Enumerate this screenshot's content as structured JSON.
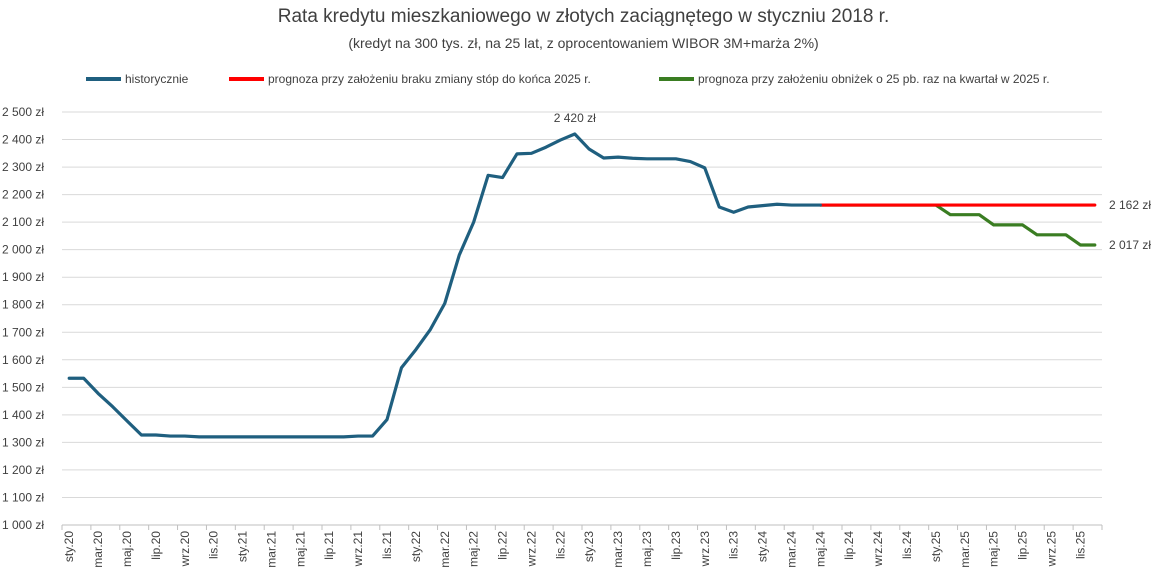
{
  "chart_data": {
    "type": "line",
    "title": "Rata kredytu mieszkaniowego w złotych zaciągnętego w styczniu 2018 r.",
    "subtitle": "(kredyt na 300 tys. zł, na 25 lat, z oprocentowaniem WIBOR 3M+marża 2%)",
    "ylim": [
      1000,
      2500
    ],
    "y_ticks": [
      "1 000 zł",
      "1 100 zł",
      "1 200 zł",
      "1 300 zł",
      "1 400 zł",
      "1 500 zł",
      "1 600 zł",
      "1 700 zł",
      "1 800 zł",
      "1 900 zł",
      "2 000 zł",
      "2 100 zł",
      "2 200 zł",
      "2 300 zł",
      "2 400 zł",
      "2 500 zł"
    ],
    "x_tick_labels": [
      "sty.20",
      "mar.20",
      "maj.20",
      "lip.20",
      "wrz.20",
      "lis.20",
      "sty.21",
      "mar.21",
      "maj.21",
      "lip.21",
      "wrz.21",
      "lis.21",
      "sty.22",
      "mar.22",
      "maj.22",
      "lip.22",
      "wrz.22",
      "lis.22",
      "sty.23",
      "mar.23",
      "maj.23",
      "lip.23",
      "wrz.23",
      "lis.23",
      "sty.24",
      "mar.24",
      "maj.24",
      "lip.24",
      "wrz.24",
      "lis.24",
      "sty.25",
      "mar.25",
      "maj.25",
      "lip.25",
      "wrz.25",
      "lis.25"
    ],
    "x_months": [
      "2020-01",
      "2020-02",
      "2020-03",
      "2020-04",
      "2020-05",
      "2020-06",
      "2020-07",
      "2020-08",
      "2020-09",
      "2020-10",
      "2020-11",
      "2020-12",
      "2021-01",
      "2021-02",
      "2021-03",
      "2021-04",
      "2021-05",
      "2021-06",
      "2021-07",
      "2021-08",
      "2021-09",
      "2021-10",
      "2021-11",
      "2021-12",
      "2022-01",
      "2022-02",
      "2022-03",
      "2022-04",
      "2022-05",
      "2022-06",
      "2022-07",
      "2022-08",
      "2022-09",
      "2022-10",
      "2022-11",
      "2022-12",
      "2023-01",
      "2023-02",
      "2023-03",
      "2023-04",
      "2023-05",
      "2023-06",
      "2023-07",
      "2023-08",
      "2023-09",
      "2023-10",
      "2023-11",
      "2023-12",
      "2024-01",
      "2024-02",
      "2024-03",
      "2024-04",
      "2024-05",
      "2024-06",
      "2024-07",
      "2024-08",
      "2024-09",
      "2024-10",
      "2024-11",
      "2024-12",
      "2025-01",
      "2025-02",
      "2025-03",
      "2025-04",
      "2025-05",
      "2025-06",
      "2025-07",
      "2025-08",
      "2025-09",
      "2025-10",
      "2025-11",
      "2025-12"
    ],
    "series": [
      {
        "name": "historycznie",
        "color": "#1f5f7f",
        "start_month": "2020-01",
        "values": [
          1533,
          1533,
          1478,
          1430,
          1378,
          1327,
          1327,
          1323,
          1323,
          1320,
          1320,
          1320,
          1320,
          1320,
          1320,
          1320,
          1320,
          1320,
          1320,
          1320,
          1323,
          1323,
          1383,
          1571,
          1637,
          1710,
          1805,
          1980,
          2100,
          2270,
          2262,
          2348,
          2350,
          2372,
          2398,
          2420,
          2365,
          2333,
          2336,
          2332,
          2330,
          2330,
          2330,
          2320,
          2297,
          2155,
          2136,
          2155,
          2160,
          2165,
          2162,
          2162,
          2162
        ]
      },
      {
        "name": "prognoza przy założeniu braku zmiany stóp do końca 2025 r.",
        "color": "#ff0000",
        "start_month": "2024-05",
        "values": [
          2162,
          2162,
          2162,
          2162,
          2162,
          2162,
          2162,
          2162,
          2162,
          2162,
          2162,
          2162,
          2162,
          2162,
          2162,
          2162,
          2162,
          2162,
          2162,
          2162
        ]
      },
      {
        "name": "prognoza przy założeniu obniżek o 25 pb. raz na kwartał w 2025 r.",
        "color": "#3a7d22",
        "start_month": "2024-05",
        "values": [
          2162,
          2162,
          2162,
          2162,
          2162,
          2162,
          2162,
          2162,
          2162,
          2127,
          2127,
          2127,
          2090,
          2090,
          2090,
          2054,
          2054,
          2054,
          2017,
          2017
        ]
      }
    ],
    "annotations": [
      {
        "text": "2 420 zł",
        "month": "2022-12",
        "value": 2420,
        "position": "above"
      },
      {
        "text": "2 162 zł",
        "month": "2025-12",
        "value": 2162,
        "position": "right"
      },
      {
        "text": "2 017 zł",
        "month": "2025-12",
        "value": 2017,
        "position": "right"
      }
    ],
    "grid": "horizontal",
    "legend_position": "top"
  }
}
